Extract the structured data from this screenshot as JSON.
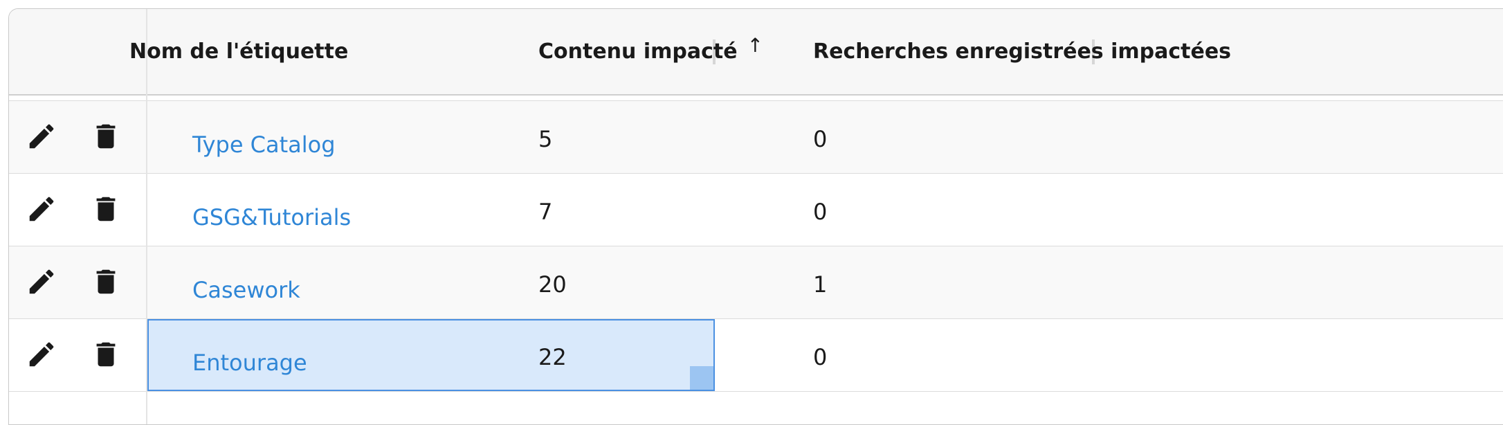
{
  "columns": {
    "tag_name": "Nom de l'étiquette",
    "impacted_content": "Contenu impacté",
    "impacted_saved_searches": "Recherches enregistrées impactées",
    "sort_icon": "↑"
  },
  "icons": {
    "edit": "pencil-icon",
    "delete": "trash-icon"
  },
  "rows": [
    {
      "name": "Type Catalog",
      "content": "5",
      "searches": "0"
    },
    {
      "name": "GSG&Tutorials",
      "content": "7",
      "searches": "0"
    },
    {
      "name": "Casework",
      "content": "20",
      "searches": "1"
    },
    {
      "name": "Entourage",
      "content": "22",
      "searches": "0"
    }
  ],
  "selected_row": 3,
  "colors": {
    "link": "#2f86d6",
    "selection_bg": "#d9e9fb",
    "selection_border": "#4a90e2",
    "header_bg": "#f7f7f7"
  }
}
